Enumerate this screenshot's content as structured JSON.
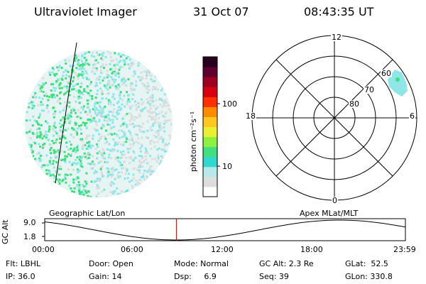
{
  "header": {
    "title": "Ultraviolet Imager",
    "date": "31 Oct 07",
    "time": "08:43:35 UT"
  },
  "colorbar": {
    "unit_label": "photon cm⁻²s⁻¹",
    "ticks": [
      "100",
      "10"
    ],
    "colors": [
      "#ffffff",
      "#dddddd",
      "#b8e8e8",
      "#30d8d0",
      "#40e080",
      "#90f040",
      "#e8f030",
      "#ffc820",
      "#ff8c00",
      "#ff3000",
      "#d80010",
      "#a00020",
      "#600030",
      "#2a0020"
    ]
  },
  "polar": {
    "mlt_labels": {
      "top": "12",
      "bottom": "0",
      "left": "18",
      "right": "6"
    },
    "lat_labels": [
      "60",
      "70",
      "80"
    ]
  },
  "orbit": {
    "ylabel": "GC Alt",
    "y_ticks": [
      "9.0",
      "1.8"
    ],
    "left_caption": "Geographic Lat/Lon",
    "right_caption": "Apex  MLat/MLT",
    "x_ticks": [
      "00:00",
      "06:00",
      "12:00",
      "18:00",
      "23:59"
    ],
    "current_time_fraction": 0.365
  },
  "info": {
    "flt": "Flt: LBHL",
    "ip": "IP: 36.0",
    "door": "Door: Open",
    "gain": "Gain: 14",
    "mode": "Mode: Normal",
    "dsp": "Dsp:     6.9",
    "gc_alt": "GC Alt: 2.3 Re",
    "seq": "Seq: 39",
    "glat": "GLat:  52.5",
    "glon": "GLon: 330.8"
  },
  "palette": {
    "cyan": "#8ee6e6",
    "green": "#3ee07c",
    "grey": "#dcdcdc",
    "current_marker": "#cc0000"
  }
}
